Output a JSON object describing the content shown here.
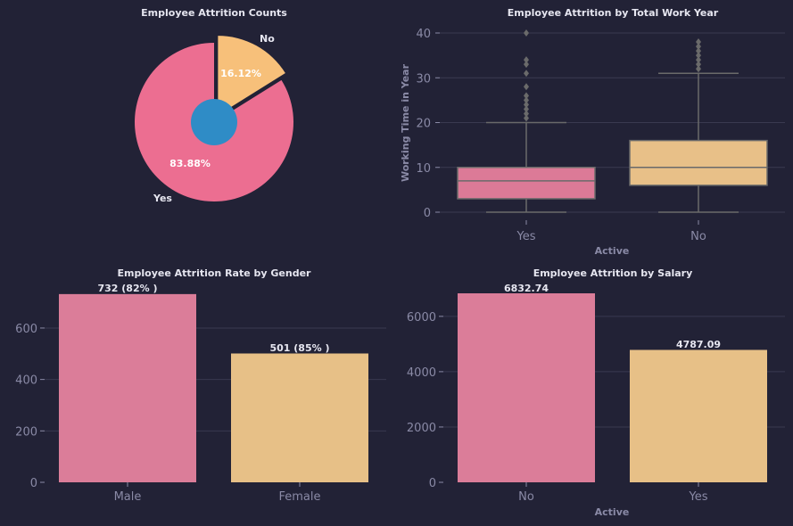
{
  "colors": {
    "background": "#222236",
    "pink": "#ec6e91",
    "orange": "#f7c07a",
    "center": "#2f8cc6",
    "box_pink": "#dc7a97",
    "box_orange": "#e8c088",
    "bar_pink": "#db7d99",
    "bar_orange": "#e7c087",
    "whisker": "#6a6a6a"
  },
  "chart_data": [
    {
      "type": "pie",
      "title": "Employee Attrition Counts",
      "labels": [
        "Yes",
        "No"
      ],
      "values": [
        83.88,
        16.12
      ],
      "pct_labels": [
        "83.88%",
        "16.12%"
      ],
      "explode": "No"
    },
    {
      "type": "box",
      "title": "Employee Attrition by Total Work Year",
      "xlabel": "Active",
      "ylabel": "Working Time in Year",
      "categories": [
        "Yes",
        "No"
      ],
      "ylim": [
        -2,
        43
      ],
      "yticks": [
        0,
        10,
        20,
        30,
        40
      ],
      "ytick_labels": [
        "0",
        "10",
        "20",
        "30",
        "40"
      ],
      "grid": true,
      "boxes": [
        {
          "category": "Yes",
          "min": 0,
          "q1": 3,
          "median": 7,
          "q3": 10,
          "max": 20,
          "outliers": [
            21,
            22,
            23,
            24,
            25,
            26,
            28,
            31,
            33,
            34,
            40
          ]
        },
        {
          "category": "No",
          "min": 0,
          "q1": 6,
          "median": 10,
          "q3": 16,
          "max": 31,
          "outliers": [
            32,
            33,
            34,
            35,
            36,
            37,
            38
          ]
        }
      ]
    },
    {
      "type": "bar",
      "title": "Employee Attrition Rate by Gender",
      "xlabel": "",
      "ylabel": "",
      "categories": [
        "Male",
        "Female"
      ],
      "values": [
        732,
        501
      ],
      "value_labels": [
        "732 (82% )",
        "501 (85% )"
      ],
      "ylim": [
        0,
        735
      ],
      "yticks": [
        0,
        200,
        400,
        600
      ],
      "ytick_labels": [
        "0",
        "200",
        "400",
        "600"
      ],
      "grid": true
    },
    {
      "type": "bar",
      "title": "Employee Attrition by Salary",
      "xlabel": "Active",
      "ylabel": "",
      "categories": [
        "No",
        "Yes"
      ],
      "values": [
        6832.74,
        4787.09
      ],
      "value_labels": [
        "6832.74",
        "4787.09"
      ],
      "ylim": [
        0,
        6833
      ],
      "yticks": [
        0,
        2000,
        4000,
        6000
      ],
      "ytick_labels": [
        "0",
        "2000",
        "4000",
        "6000"
      ],
      "grid": true
    }
  ]
}
